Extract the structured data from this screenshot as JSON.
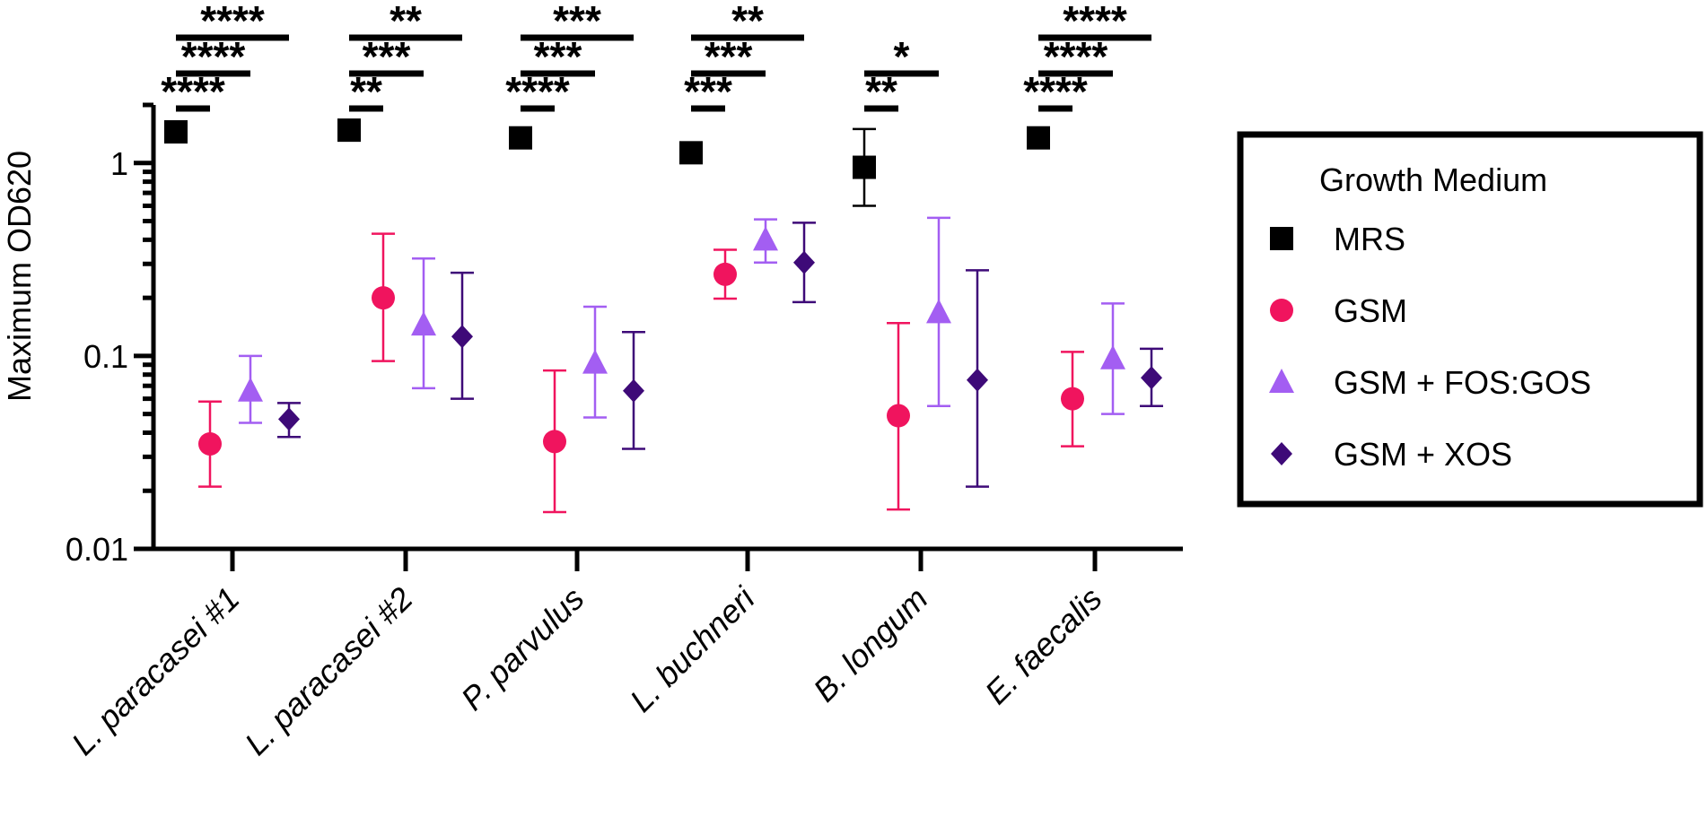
{
  "chart_data": {
    "type": "scatter",
    "ylabel": "Maximum OD620",
    "yscale": "log",
    "ylim": [
      0.01,
      2.0
    ],
    "yticks": [
      {
        "value": 1,
        "label": "1"
      },
      {
        "value": 0.1,
        "label": "0.1"
      },
      {
        "value": 0.01,
        "label": "0.01"
      }
    ],
    "categories": [
      "L. paracasei #1",
      "L. paracasei #2",
      "P. parvulus",
      "L. buchneri",
      "B. longum",
      "E. faecalis"
    ],
    "legend_title": "Growth Medium",
    "legend_position": "right",
    "series": [
      {
        "name": "MRS",
        "color": "#000000",
        "marker": "square",
        "values": [
          1.45,
          1.48,
          1.35,
          1.13,
          0.95,
          1.35
        ],
        "err_low": [
          1.4,
          1.42,
          1.29,
          1.07,
          0.6,
          1.29
        ],
        "err_high": [
          1.5,
          1.55,
          1.41,
          1.2,
          1.5,
          1.41
        ]
      },
      {
        "name": "GSM",
        "color": "#f0145e",
        "marker": "circle",
        "values": [
          0.035,
          0.2,
          0.036,
          0.265,
          0.049,
          0.06
        ],
        "err_low": [
          0.021,
          0.094,
          0.0155,
          0.198,
          0.016,
          0.034
        ],
        "err_high": [
          0.058,
          0.43,
          0.084,
          0.355,
          0.148,
          0.105
        ]
      },
      {
        "name": "GSM + FOS:GOS",
        "color": "#a35ef2",
        "marker": "triangle",
        "values": [
          0.066,
          0.145,
          0.092,
          0.4,
          0.168,
          0.097
        ],
        "err_low": [
          0.045,
          0.068,
          0.048,
          0.305,
          0.055,
          0.05
        ],
        "err_high": [
          0.1,
          0.32,
          0.18,
          0.51,
          0.52,
          0.187
        ]
      },
      {
        "name": "GSM + XOS",
        "color": "#3e0a78",
        "marker": "diamond",
        "values": [
          0.047,
          0.126,
          0.066,
          0.305,
          0.075,
          0.077
        ],
        "err_low": [
          0.038,
          0.06,
          0.033,
          0.19,
          0.021,
          0.055
        ],
        "err_high": [
          0.057,
          0.27,
          0.133,
          0.49,
          0.278,
          0.109
        ]
      }
    ],
    "significance": [
      [
        {
          "compare": "GSM",
          "label": "****"
        },
        {
          "compare": "GSM + FOS:GOS",
          "label": "****"
        },
        {
          "compare": "GSM + XOS",
          "label": "****"
        }
      ],
      [
        {
          "compare": "GSM",
          "label": "**"
        },
        {
          "compare": "GSM + FOS:GOS",
          "label": "***"
        },
        {
          "compare": "GSM + XOS",
          "label": "**"
        }
      ],
      [
        {
          "compare": "GSM",
          "label": "****"
        },
        {
          "compare": "GSM + FOS:GOS",
          "label": "***"
        },
        {
          "compare": "GSM + XOS",
          "label": "***"
        }
      ],
      [
        {
          "compare": "GSM",
          "label": "***"
        },
        {
          "compare": "GSM + FOS:GOS",
          "label": "***"
        },
        {
          "compare": "GSM + XOS",
          "label": "**"
        }
      ],
      [
        {
          "compare": "GSM",
          "label": "**"
        },
        {
          "compare": "GSM + FOS:GOS",
          "label": "*"
        }
      ],
      [
        {
          "compare": "GSM",
          "label": "****"
        },
        {
          "compare": "GSM + FOS:GOS",
          "label": "****"
        },
        {
          "compare": "GSM + XOS",
          "label": "****"
        }
      ]
    ]
  }
}
